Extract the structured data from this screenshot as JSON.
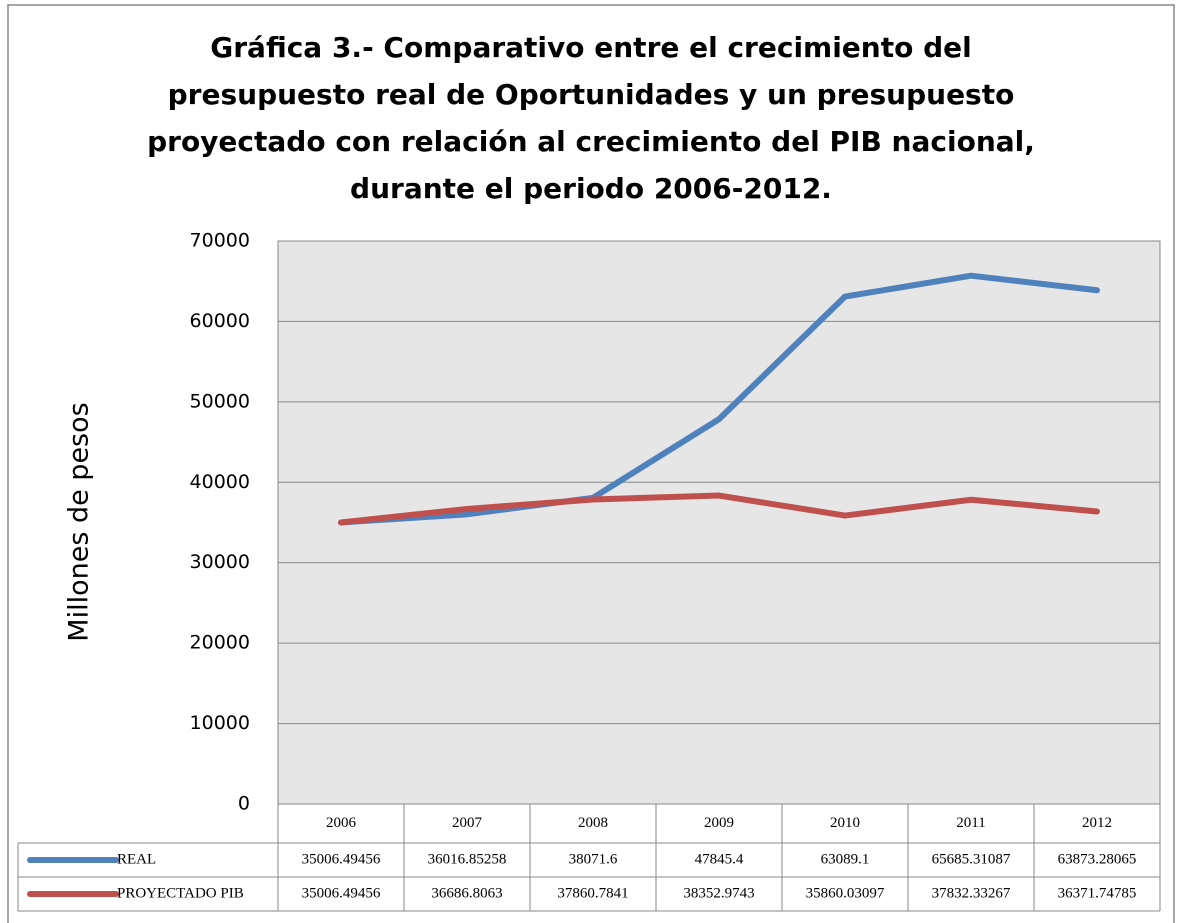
{
  "chart_data": {
    "type": "line",
    "title": "Gráfica 3.- Comparativo entre el crecimiento del\npresupuesto real de Oportunidades y un presupuesto\nproyectado con relación al crecimiento del PIB nacional,\ndurante el periodo 2006-2012.",
    "y_label": "Millones de pesos",
    "categories": [
      "2006",
      "2007",
      "2008",
      "2009",
      "2010",
      "2011",
      "2012"
    ],
    "series": [
      {
        "name": "REAL",
        "color": "#4f81bd",
        "values": [
          35006.49456,
          36016.85258,
          38071.6,
          47845.4,
          63089.1,
          65685.31087,
          63873.28065
        ]
      },
      {
        "name": "PROYECTADO PIB",
        "color": "#c0504d",
        "values": [
          35006.49456,
          36686.8063,
          37860.7841,
          38352.9743,
          35860.03097,
          37832.33267,
          36371.74785
        ]
      }
    ],
    "ylim": [
      0,
      70000
    ],
    "yticks": [
      0,
      10000,
      20000,
      30000,
      40000,
      50000,
      60000,
      70000
    ],
    "grid": true
  }
}
